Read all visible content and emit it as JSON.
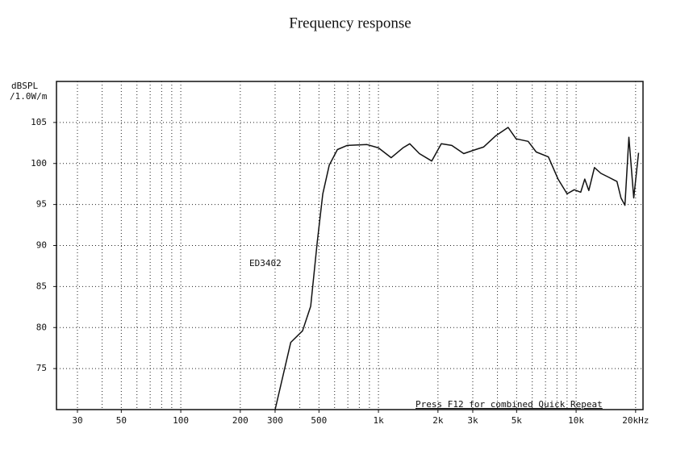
{
  "chart_data": {
    "type": "line",
    "title": "Frequency response",
    "y_label_line1": "dBSPL",
    "y_label_line2": "/1.0W/m",
    "annotation_model": "ED3402",
    "annotation_status": "Press F12 for combined Quick Repeat",
    "log_x": true,
    "grid": true,
    "xlim": [
      23.5,
      21800
    ],
    "ylim": [
      70,
      110
    ],
    "xticks": [
      30,
      50,
      100,
      200,
      300,
      500,
      {
        "value": 1000,
        "label": "1k"
      },
      {
        "value": 2000,
        "label": "2k"
      },
      {
        "value": 3000,
        "label": "3k"
      },
      {
        "value": 5000,
        "label": "5k"
      },
      {
        "value": 10000,
        "label": "10k"
      },
      {
        "value": 20000,
        "label": "20kHz"
      }
    ],
    "xgrid": [
      30,
      40,
      50,
      60,
      70,
      80,
      90,
      100,
      200,
      300,
      400,
      500,
      600,
      700,
      800,
      900,
      1000,
      2000,
      3000,
      4000,
      5000,
      6000,
      7000,
      8000,
      9000,
      10000,
      20000
    ],
    "yticks": [
      75,
      80,
      85,
      90,
      95,
      100,
      105
    ],
    "ygrid": [
      75,
      80,
      85,
      90,
      95,
      100,
      105
    ],
    "x": [
      300,
      360,
      413,
      454,
      490,
      523,
      564,
      620,
      693,
      875,
      1000,
      1160,
      1330,
      1440,
      1610,
      1860,
      2080,
      2350,
      2700,
      3100,
      3400,
      3930,
      4530,
      4970,
      5720,
      6280,
      7240,
      8100,
      9000,
      9790,
      10550,
      11060,
      11590,
      12380,
      13350,
      14660,
      16090,
      16860,
      17660,
      18500,
      19570,
      20700
    ],
    "series": [
      {
        "name": "ED3402",
        "color": "#111111",
        "values": [
          70,
          78.2,
          79.6,
          82.6,
          90.4,
          96.3,
          99.8,
          101.7,
          102.2,
          102.3,
          101.9,
          100.7,
          101.9,
          102.4,
          101.2,
          100.3,
          102.4,
          102.2,
          101.2,
          101.7,
          102.0,
          103.4,
          104.4,
          103.0,
          102.7,
          101.4,
          100.8,
          98.1,
          96.3,
          96.8,
          96.5,
          98.1,
          96.7,
          99.5,
          98.8,
          98.3,
          97.8,
          95.8,
          94.9,
          103.2,
          95.8,
          101.3
        ]
      }
    ]
  }
}
